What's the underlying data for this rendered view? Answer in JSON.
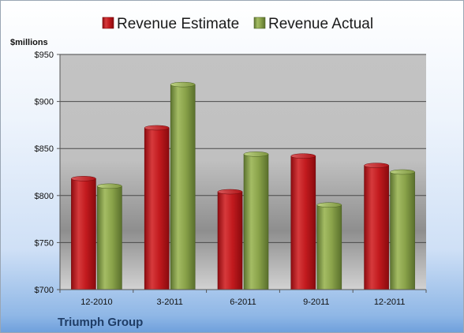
{
  "chart_data": {
    "type": "bar",
    "title": "",
    "ylabel": "$millions",
    "footer_label": "Triumph Group",
    "categories": [
      "12-2010",
      "3-2011",
      "6-2011",
      "9-2011",
      "12-2011"
    ],
    "series": [
      {
        "name": "Revenue Estimate",
        "color": "#c0161c",
        "values": [
          818,
          872,
          804,
          842,
          832
        ]
      },
      {
        "name": "Revenue Actual",
        "color": "#8aa34a",
        "values": [
          810,
          918,
          844,
          790,
          825
        ]
      }
    ],
    "ylim": [
      700,
      950
    ],
    "yticks": [
      "$700",
      "$750",
      "$800",
      "$850",
      "$900",
      "$950"
    ],
    "ytick_values": [
      700,
      750,
      800,
      850,
      900,
      950
    ],
    "legend_position": "top",
    "grid": true
  }
}
